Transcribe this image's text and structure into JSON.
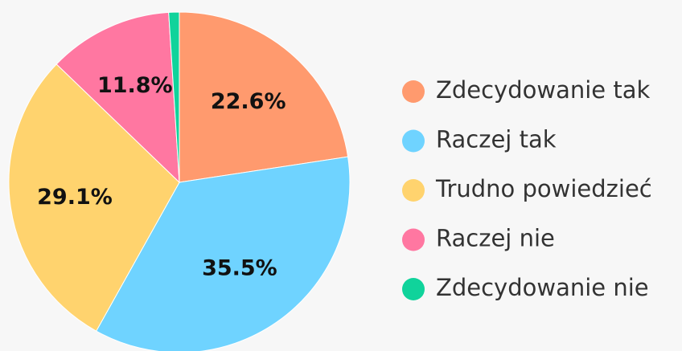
{
  "chart_data": {
    "type": "pie",
    "categories": [
      "Zdecydowanie tak",
      "Raczej tak",
      "Trudno powiedzieć",
      "Raczej nie",
      "Zdecydowanie nie"
    ],
    "values": [
      22.6,
      35.5,
      29.1,
      11.8,
      1.0
    ],
    "value_labels": [
      "22.6%",
      "35.5%",
      "29.1%",
      "11.8%",
      null
    ],
    "colors": [
      "#ff9a6e",
      "#6fd3ff",
      "#ffd36e",
      "#ff77a1",
      "#10d39b"
    ],
    "legend": "right"
  }
}
